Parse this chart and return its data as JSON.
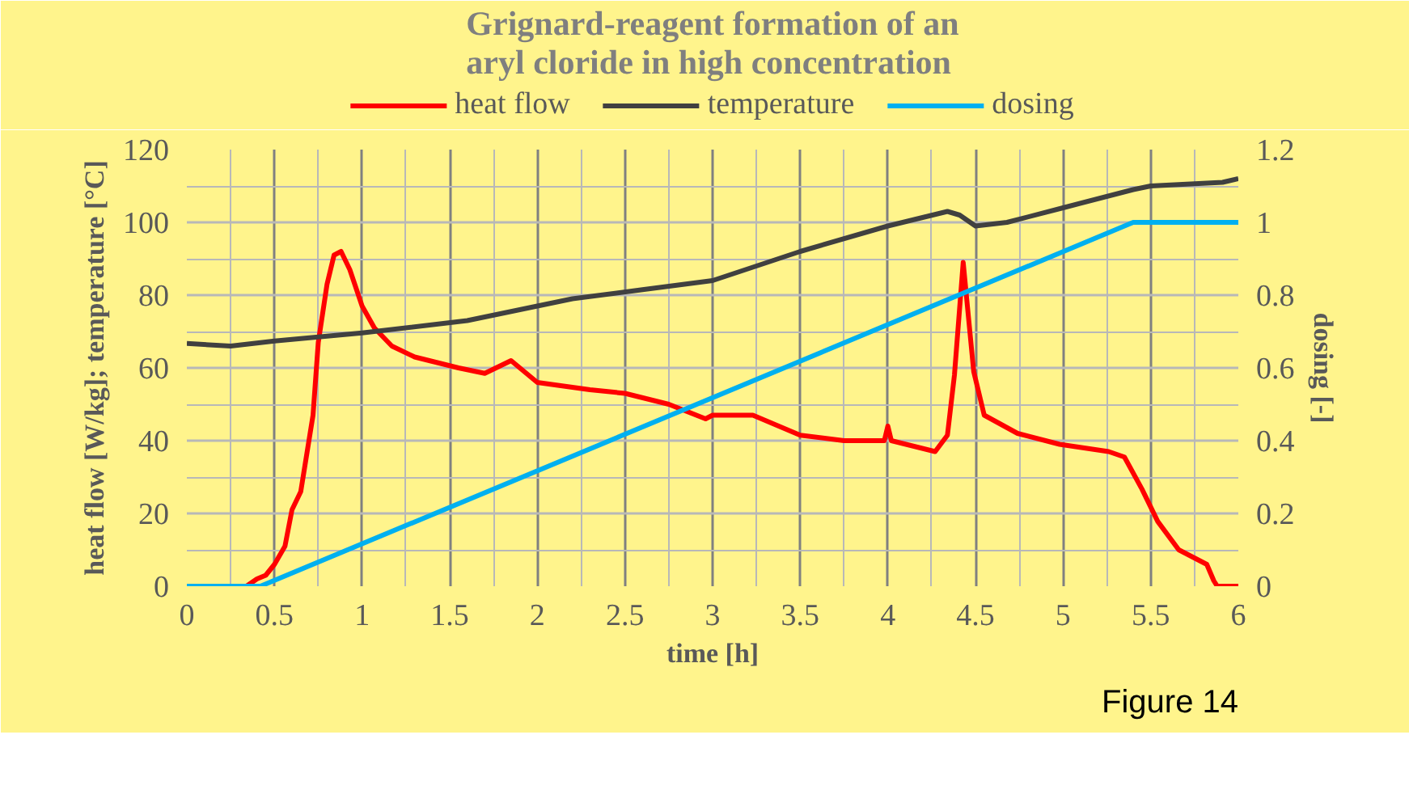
{
  "chart_data": {
    "type": "line",
    "title": "Grignard-reagent formation of an aryl cloride in high concentration",
    "xlabel": "time [h]",
    "ylabel": "heat flow [W/kg]; temperature [°C]",
    "y2label": "dosing [-]",
    "xlim": [
      0,
      6
    ],
    "xticks": [
      0,
      0.5,
      1,
      1.5,
      2,
      2.5,
      3,
      3.5,
      4,
      4.5,
      5,
      5.5,
      6
    ],
    "ylim": [
      0,
      120
    ],
    "yticks": [
      0,
      20,
      40,
      60,
      80,
      100,
      120
    ],
    "y2lim": [
      0,
      1.2
    ],
    "y2ticks": [
      0,
      0.2,
      0.4,
      0.6,
      0.8,
      1,
      1.2
    ],
    "grid": true,
    "legend": "top",
    "line_style": "solid",
    "marker": "none",
    "annotations": [
      "Figure 14"
    ],
    "series": [
      {
        "name": "heat flow",
        "color": "#ff0000",
        "x": [
          0.34,
          0.4,
          0.45,
          0.5,
          0.56,
          0.6,
          0.65,
          0.72,
          0.75,
          0.8,
          0.84,
          0.88,
          0.93,
          1.0,
          1.07,
          1.17,
          1.3,
          1.55,
          1.7,
          1.85,
          2.0,
          2.3,
          2.5,
          2.75,
          2.96,
          3.0,
          3.23,
          3.5,
          3.75,
          3.98,
          4.0,
          4.02,
          4.27,
          4.34,
          4.38,
          4.43,
          4.49,
          4.55,
          4.74,
          4.98,
          5.26,
          5.35,
          5.45,
          5.54,
          5.66,
          5.82,
          5.86,
          5.88,
          6.0
        ],
        "values": [
          0,
          2,
          3,
          6,
          11,
          21,
          26,
          47,
          67,
          83,
          91,
          92,
          87,
          77,
          71,
          66,
          63,
          60,
          58.5,
          62,
          56,
          54,
          53,
          50,
          46,
          47,
          47,
          41.5,
          40,
          40,
          44,
          40,
          37,
          41.5,
          58,
          89,
          59,
          47,
          42,
          39,
          37,
          35.5,
          26.7,
          17.8,
          10,
          6,
          1.5,
          0,
          0
        ]
      },
      {
        "name": "temperature",
        "color": "#404040",
        "x": [
          0,
          0.25,
          0.5,
          1.0,
          1.6,
          2.2,
          2.6,
          3.0,
          3.5,
          4.0,
          4.34,
          4.41,
          4.5,
          4.68,
          5.0,
          5.4,
          5.5,
          5.91,
          6.0
        ],
        "values": [
          66.7,
          66,
          67.4,
          69.6,
          73,
          79,
          81.5,
          84,
          92,
          99,
          103,
          102,
          99,
          100,
          104,
          109,
          110,
          111,
          112
        ]
      },
      {
        "name": "dosing",
        "color": "#00b0f0",
        "axis": "y2",
        "x": [
          0,
          0.42,
          5.4,
          6.0
        ],
        "values": [
          0,
          0,
          1,
          1
        ]
      }
    ]
  }
}
